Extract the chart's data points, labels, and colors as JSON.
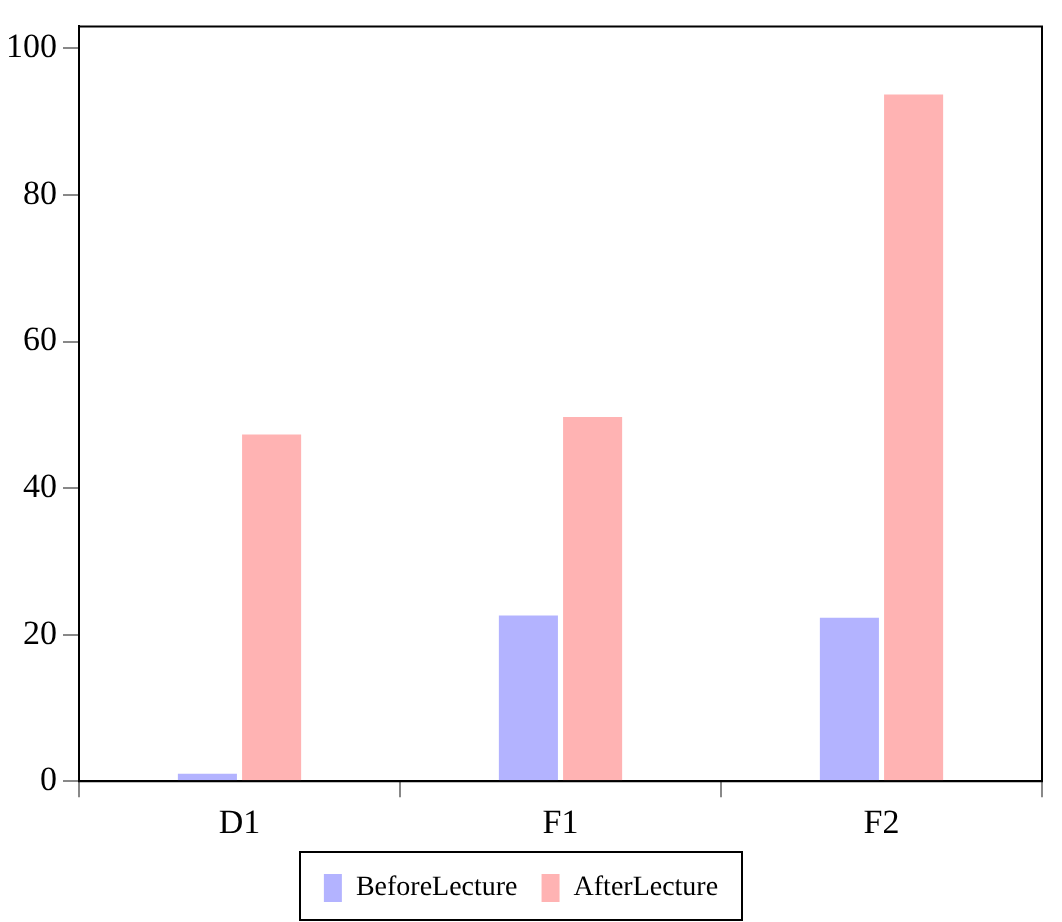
{
  "chart_data": {
    "type": "bar",
    "categories": [
      "D1",
      "F1",
      "F2"
    ],
    "series": [
      {
        "name": "BeforeLecture",
        "color": "#b3b3ff",
        "values": [
          1.0,
          22.6,
          22.3
        ]
      },
      {
        "name": "AfterLecture",
        "color": "#ffb3b3",
        "values": [
          47.3,
          49.7,
          93.7
        ]
      }
    ],
    "ylim": [
      0,
      103
    ],
    "yticks": [
      0,
      20,
      40,
      60,
      80,
      100
    ],
    "grid": false,
    "legend": "bottom"
  }
}
